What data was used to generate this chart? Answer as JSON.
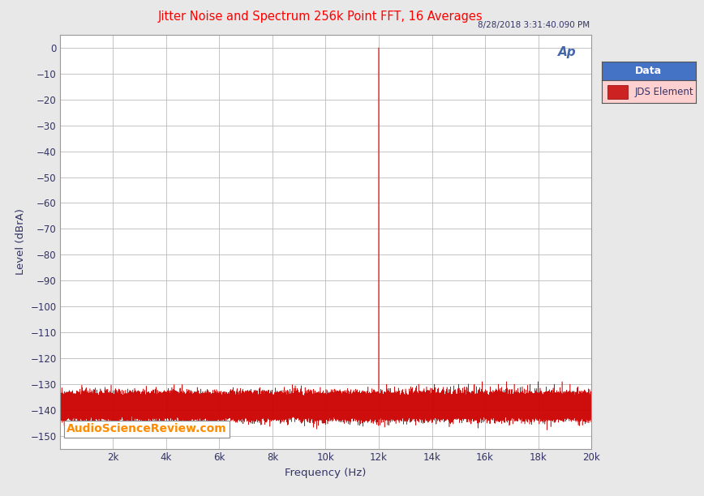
{
  "title": "Jitter Noise and Spectrum 256k Point FFT, 16 Averages",
  "title_color": "#FF0000",
  "subtitle": "8/28/2018 3:31:40.090 PM",
  "xlabel": "Frequency (Hz)",
  "ylabel": "Level (dBrA)",
  "xlim": [
    0,
    20000
  ],
  "ylim": [
    -155,
    5
  ],
  "yticks": [
    0,
    -10,
    -20,
    -30,
    -40,
    -50,
    -60,
    -70,
    -80,
    -90,
    -100,
    -110,
    -120,
    -130,
    -140,
    -150
  ],
  "xtick_positions": [
    0,
    2000,
    4000,
    6000,
    8000,
    10000,
    12000,
    14000,
    16000,
    18000,
    20000
  ],
  "xtick_labels": [
    "",
    "2k",
    "4k",
    "6k",
    "8k",
    "10k",
    "12k",
    "14k",
    "16k",
    "18k",
    "20k"
  ],
  "signal_color": "#CC0000",
  "noise_floor": -138.5,
  "noise_std": 2.0,
  "main_peak_freq": 12000,
  "main_peak_level": 0,
  "background_color": "#E8E8E8",
  "plot_bg_color": "#FFFFFF",
  "grid_color": "#BBBBBB",
  "legend_header": "Data",
  "legend_label": "JDS Element",
  "legend_header_bg": "#4472C4",
  "legend_body_bg": "#FFD0D0",
  "watermark": "AudioScienceReview.com",
  "watermark_color": "#FF8C00",
  "ap_logo_color": "#4466AA",
  "text_color": "#333366"
}
